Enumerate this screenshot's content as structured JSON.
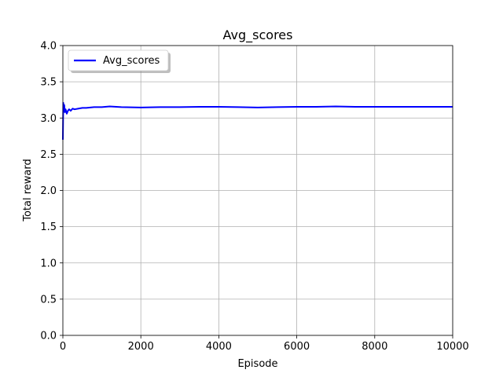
{
  "chart_data": {
    "type": "line",
    "title": "Avg_scores",
    "xlabel": "Episode",
    "ylabel": "Total reward",
    "xlim": [
      0,
      10000
    ],
    "ylim": [
      0.0,
      4.0
    ],
    "xticks": [
      "0",
      "2000",
      "4000",
      "6000",
      "8000",
      "10000"
    ],
    "yticks": [
      "0.0",
      "0.5",
      "1.0",
      "1.5",
      "2.0",
      "2.5",
      "3.0",
      "3.5",
      "4.0"
    ],
    "grid": true,
    "legend_position": "top-left",
    "series": [
      {
        "name": "Avg_scores",
        "color": "#0000ff",
        "x": [
          0,
          10,
          20,
          35,
          50,
          70,
          100,
          130,
          160,
          200,
          250,
          300,
          400,
          500,
          600,
          800,
          1000,
          1200,
          1500,
          2000,
          2500,
          3000,
          3500,
          4000,
          4500,
          5000,
          5500,
          6000,
          6500,
          7000,
          7500,
          8000,
          8500,
          9000,
          9500,
          10000
        ],
        "y": [
          2.7,
          3.21,
          3.15,
          3.18,
          3.08,
          3.12,
          3.06,
          3.1,
          3.12,
          3.1,
          3.13,
          3.12,
          3.13,
          3.14,
          3.14,
          3.15,
          3.15,
          3.16,
          3.15,
          3.145,
          3.15,
          3.15,
          3.155,
          3.155,
          3.15,
          3.145,
          3.15,
          3.155,
          3.155,
          3.16,
          3.155,
          3.155,
          3.155,
          3.155,
          3.155,
          3.155
        ]
      }
    ]
  }
}
